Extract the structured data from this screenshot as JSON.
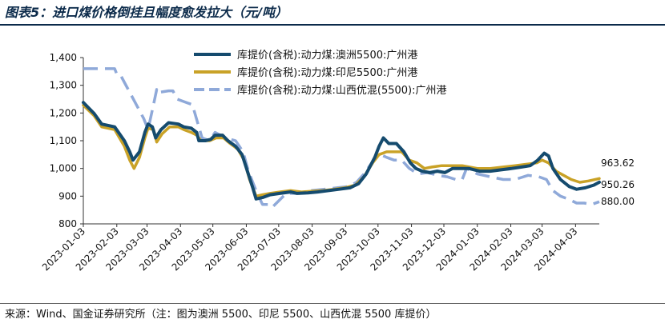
{
  "title": "图表5：进口煤价格倒挂且幅度愈发拉大（元/吨）",
  "source": "来源：Wind、国金证券研究所（注：图为澳洲 5500、印尼 5500、山西优混 5500 库提价）",
  "chart_data": {
    "type": "line",
    "title": "图表5：进口煤价格倒挂且幅度愈发拉大（元/吨）",
    "xlabel": "",
    "ylabel": "元/吨",
    "ylim": [
      800,
      1400
    ],
    "yticks": [
      "1,400",
      "1,300",
      "1,200",
      "1,100",
      "1,000",
      "900",
      "800"
    ],
    "ytick_values": [
      1400,
      1300,
      1200,
      1100,
      1000,
      900,
      800
    ],
    "x_range": [
      "2023-01-03",
      "2024-04-25"
    ],
    "xticks": [
      "2023-01-03",
      "2023-02-03",
      "2023-03-03",
      "2023-04-03",
      "2023-05-03",
      "2023-06-03",
      "2023-07-03",
      "2023-08-03",
      "2023-09-03",
      "2023-10-03",
      "2023-11-03",
      "2023-12-03",
      "2024-01-03",
      "2024-02-03",
      "2024-03-03",
      "2024-04-03"
    ],
    "legend_position": "top-center",
    "end_labels": [
      "963.62",
      "950.26",
      "880.00"
    ],
    "series": [
      {
        "name": "库提价(含税):动力煤:澳洲5500:广州港",
        "color": "#154b6e",
        "dash": "solid",
        "points": [
          [
            "2023-01-03",
            1238
          ],
          [
            "2023-01-13",
            1198
          ],
          [
            "2023-01-20",
            1160
          ],
          [
            "2023-02-01",
            1150
          ],
          [
            "2023-02-10",
            1100
          ],
          [
            "2023-02-15",
            1060
          ],
          [
            "2023-02-18",
            1030
          ],
          [
            "2023-02-24",
            1060
          ],
          [
            "2023-03-01",
            1130
          ],
          [
            "2023-03-04",
            1160
          ],
          [
            "2023-03-08",
            1150
          ],
          [
            "2023-03-11",
            1110
          ],
          [
            "2023-03-16",
            1140
          ],
          [
            "2023-03-23",
            1165
          ],
          [
            "2023-04-01",
            1160
          ],
          [
            "2023-04-06",
            1150
          ],
          [
            "2023-04-13",
            1145
          ],
          [
            "2023-04-18",
            1130
          ],
          [
            "2023-04-20",
            1100
          ],
          [
            "2023-04-26",
            1100
          ],
          [
            "2023-05-01",
            1105
          ],
          [
            "2023-05-05",
            1120
          ],
          [
            "2023-05-12",
            1120
          ],
          [
            "2023-05-17",
            1100
          ],
          [
            "2023-05-24",
            1080
          ],
          [
            "2023-05-30",
            1050
          ],
          [
            "2023-06-04",
            990
          ],
          [
            "2023-06-09",
            930
          ],
          [
            "2023-06-12",
            890
          ],
          [
            "2023-06-18",
            895
          ],
          [
            "2023-06-25",
            905
          ],
          [
            "2023-07-04",
            910
          ],
          [
            "2023-07-14",
            915
          ],
          [
            "2023-07-20",
            910
          ],
          [
            "2023-07-30",
            912
          ],
          [
            "2023-08-08",
            915
          ],
          [
            "2023-08-18",
            920
          ],
          [
            "2023-08-28",
            925
          ],
          [
            "2023-09-07",
            930
          ],
          [
            "2023-09-15",
            945
          ],
          [
            "2023-09-22",
            980
          ],
          [
            "2023-09-30",
            1040
          ],
          [
            "2023-10-04",
            1080
          ],
          [
            "2023-10-08",
            1110
          ],
          [
            "2023-10-13",
            1090
          ],
          [
            "2023-10-20",
            1090
          ],
          [
            "2023-10-27",
            1060
          ],
          [
            "2023-11-02",
            1020
          ],
          [
            "2023-11-07",
            1000
          ],
          [
            "2023-11-13",
            990
          ],
          [
            "2023-11-20",
            985
          ],
          [
            "2023-11-27",
            990
          ],
          [
            "2023-12-04",
            985
          ],
          [
            "2023-12-11",
            1000
          ],
          [
            "2023-12-18",
            1000
          ],
          [
            "2023-12-26",
            1000
          ],
          [
            "2024-01-05",
            990
          ],
          [
            "2024-01-15",
            990
          ],
          [
            "2024-01-25",
            995
          ],
          [
            "2024-02-04",
            1000
          ],
          [
            "2024-02-13",
            1005
          ],
          [
            "2024-02-21",
            1010
          ],
          [
            "2024-02-28",
            1030
          ],
          [
            "2024-03-05",
            1055
          ],
          [
            "2024-03-09",
            1045
          ],
          [
            "2024-03-13",
            1000
          ],
          [
            "2024-03-20",
            960
          ],
          [
            "2024-03-28",
            935
          ],
          [
            "2024-04-04",
            925
          ],
          [
            "2024-04-12",
            930
          ],
          [
            "2024-04-20",
            940
          ],
          [
            "2024-04-25",
            950.26
          ]
        ]
      },
      {
        "name": "库提价(含税):动力煤:印尼5500:广州港",
        "color": "#c9a227",
        "dash": "solid",
        "points": [
          [
            "2023-01-03",
            1228
          ],
          [
            "2023-01-13",
            1190
          ],
          [
            "2023-01-20",
            1150
          ],
          [
            "2023-02-01",
            1140
          ],
          [
            "2023-02-10",
            1080
          ],
          [
            "2023-02-15",
            1030
          ],
          [
            "2023-02-19",
            1000
          ],
          [
            "2023-02-24",
            1040
          ],
          [
            "2023-03-01",
            1110
          ],
          [
            "2023-03-04",
            1145
          ],
          [
            "2023-03-09",
            1140
          ],
          [
            "2023-03-12",
            1095
          ],
          [
            "2023-03-17",
            1125
          ],
          [
            "2023-03-24",
            1150
          ],
          [
            "2023-04-01",
            1150
          ],
          [
            "2023-04-06",
            1140
          ],
          [
            "2023-04-13",
            1130
          ],
          [
            "2023-04-18",
            1120
          ],
          [
            "2023-04-22",
            1100
          ],
          [
            "2023-04-30",
            1100
          ],
          [
            "2023-05-06",
            1110
          ],
          [
            "2023-05-13",
            1110
          ],
          [
            "2023-05-19",
            1090
          ],
          [
            "2023-05-26",
            1070
          ],
          [
            "2023-06-01",
            1030
          ],
          [
            "2023-06-06",
            960
          ],
          [
            "2023-06-12",
            900
          ],
          [
            "2023-06-18",
            905
          ],
          [
            "2023-06-25",
            910
          ],
          [
            "2023-07-04",
            915
          ],
          [
            "2023-07-14",
            920
          ],
          [
            "2023-07-24",
            915
          ],
          [
            "2023-08-03",
            918
          ],
          [
            "2023-08-13",
            920
          ],
          [
            "2023-08-23",
            925
          ],
          [
            "2023-09-02",
            930
          ],
          [
            "2023-09-12",
            940
          ],
          [
            "2023-09-20",
            970
          ],
          [
            "2023-09-28",
            1020
          ],
          [
            "2023-10-04",
            1050
          ],
          [
            "2023-10-11",
            1060
          ],
          [
            "2023-10-18",
            1060
          ],
          [
            "2023-10-25",
            1060
          ],
          [
            "2023-11-01",
            1030
          ],
          [
            "2023-11-08",
            1020
          ],
          [
            "2023-11-15",
            1000
          ],
          [
            "2023-11-22",
            1005
          ],
          [
            "2023-12-01",
            1010
          ],
          [
            "2023-12-10",
            1010
          ],
          [
            "2023-12-20",
            1010
          ],
          [
            "2024-01-03",
            1000
          ],
          [
            "2024-01-15",
            1000
          ],
          [
            "2024-01-27",
            1005
          ],
          [
            "2024-02-07",
            1010
          ],
          [
            "2024-02-17",
            1015
          ],
          [
            "2024-02-27",
            1020
          ],
          [
            "2024-03-03",
            1030
          ],
          [
            "2024-03-09",
            1020
          ],
          [
            "2024-03-16",
            990
          ],
          [
            "2024-03-23",
            975
          ],
          [
            "2024-03-30",
            960
          ],
          [
            "2024-04-07",
            950
          ],
          [
            "2024-04-15",
            955
          ],
          [
            "2024-04-25",
            963.62
          ]
        ]
      },
      {
        "name": "库提价(含税):动力煤:山西优混(5500):广州港",
        "color": "#8fa9d9",
        "dash": "dashed",
        "points": [
          [
            "2023-01-03",
            1360
          ],
          [
            "2023-01-19",
            1360
          ],
          [
            "2023-02-01",
            1360
          ],
          [
            "2023-02-03",
            1340
          ],
          [
            "2023-02-06",
            1340
          ],
          [
            "2023-02-17",
            1260
          ],
          [
            "2023-02-28",
            1180
          ],
          [
            "2023-03-04",
            1140
          ],
          [
            "2023-03-09",
            1230
          ],
          [
            "2023-03-12",
            1285
          ],
          [
            "2023-03-14",
            1270
          ],
          [
            "2023-03-15",
            1275
          ],
          [
            "2023-03-23",
            1280
          ],
          [
            "2023-03-27",
            1280
          ],
          [
            "2023-03-31",
            1250
          ],
          [
            "2023-04-07",
            1240
          ],
          [
            "2023-04-14",
            1230
          ],
          [
            "2023-04-20",
            1150
          ],
          [
            "2023-04-23",
            1110
          ],
          [
            "2023-04-30",
            1100
          ],
          [
            "2023-05-05",
            1130
          ],
          [
            "2023-05-15",
            1110
          ],
          [
            "2023-05-24",
            1100
          ],
          [
            "2023-05-31",
            1060
          ],
          [
            "2023-06-05",
            990
          ],
          [
            "2023-06-09",
            950
          ],
          [
            "2023-06-12",
            920
          ],
          [
            "2023-06-18",
            870
          ],
          [
            "2023-06-24",
            870
          ],
          [
            "2023-06-27",
            860
          ],
          [
            "2023-07-10",
            910
          ],
          [
            "2023-07-22",
            910
          ],
          [
            "2023-08-02",
            920
          ],
          [
            "2023-08-14",
            925
          ],
          [
            "2023-08-26",
            930
          ],
          [
            "2023-09-06",
            935
          ],
          [
            "2023-09-13",
            950
          ],
          [
            "2023-09-20",
            980
          ],
          [
            "2023-09-29",
            1030
          ],
          [
            "2023-10-05",
            1050
          ],
          [
            "2023-10-11",
            1040
          ],
          [
            "2023-10-18",
            1030
          ],
          [
            "2023-10-25",
            1030
          ],
          [
            "2023-11-01",
            1000
          ],
          [
            "2023-11-09",
            980
          ],
          [
            "2023-11-18",
            985
          ],
          [
            "2023-11-27",
            975
          ],
          [
            "2023-12-06",
            970
          ],
          [
            "2023-12-14",
            960
          ],
          [
            "2023-12-20",
            960
          ],
          [
            "2023-12-24",
            1000
          ],
          [
            "2024-01-03",
            980
          ],
          [
            "2024-01-15",
            970
          ],
          [
            "2024-01-27",
            960
          ],
          [
            "2024-02-07",
            960
          ],
          [
            "2024-02-19",
            975
          ],
          [
            "2024-02-29",
            970
          ],
          [
            "2024-03-07",
            960
          ],
          [
            "2024-03-13",
            920
          ],
          [
            "2024-03-20",
            900
          ],
          [
            "2024-03-27",
            890
          ],
          [
            "2024-04-04",
            875
          ],
          [
            "2024-04-11",
            875
          ],
          [
            "2024-04-18",
            870
          ],
          [
            "2024-04-25",
            880
          ]
        ]
      }
    ]
  }
}
